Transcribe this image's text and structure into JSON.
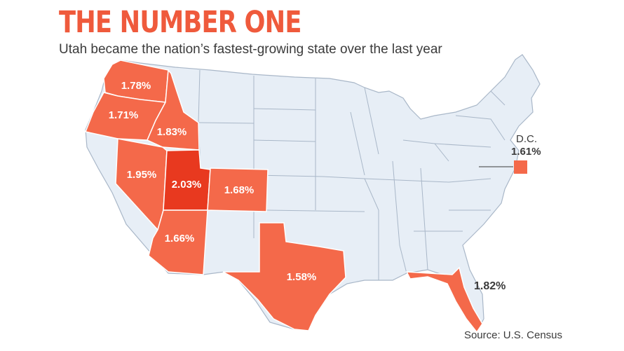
{
  "title": "THE NUMBER ONE",
  "subtitle": "Utah became the nation’s fastest-growing state over the last year",
  "source": "Source: U.S. Census",
  "colors": {
    "base_state": "#e7eef6",
    "state_border": "#a9b7c8",
    "highlight": "#f4694a",
    "top_state": "#e8391f",
    "text": "#3b3b3b",
    "title": "#ef5a3c"
  },
  "highlighted_states": [
    {
      "state": "Washington",
      "value": "1.78%"
    },
    {
      "state": "Oregon",
      "value": "1.71%"
    },
    {
      "state": "Idaho",
      "value": "1.83%"
    },
    {
      "state": "Nevada",
      "value": "1.95%"
    },
    {
      "state": "Utah",
      "value": "2.03%"
    },
    {
      "state": "Colorado",
      "value": "1.68%"
    },
    {
      "state": "Arizona",
      "value": "1.66%"
    },
    {
      "state": "Texas",
      "value": "1.58%"
    },
    {
      "state": "Florida",
      "value": "1.82%"
    }
  ],
  "dc": {
    "label": "D.C.",
    "value": "1.61%"
  }
}
